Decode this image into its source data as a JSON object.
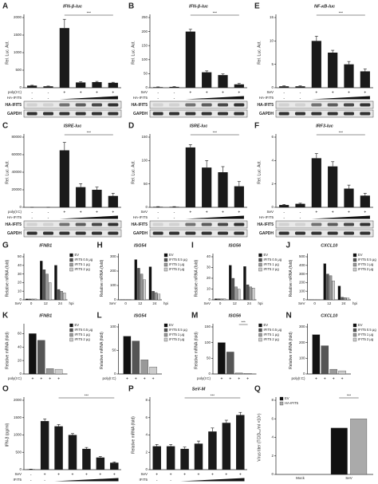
{
  "chart_data": [
    {
      "type": "bar",
      "panel": "A",
      "title": "IFN-β-luc",
      "ylabel": "Rel. Luc. Act.",
      "color": "#1a1a1a",
      "values": [
        60,
        40,
        1700,
        150,
        160,
        140
      ],
      "errors": [
        10,
        8,
        250,
        20,
        20,
        15
      ],
      "ylim": [
        0,
        2000
      ],
      "yticks": [
        0,
        500,
        1000,
        1500,
        2000
      ],
      "annotation": "***",
      "rows": [
        {
          "label": "poly(I:C)",
          "signs": [
            "-",
            "-",
            "+",
            "+",
            "+",
            "+"
          ]
        },
        {
          "label": "HA-IFIT5",
          "signs": [
            "-",
            "-",
            null,
            null,
            null,
            null
          ],
          "ramp": true
        }
      ],
      "blots": [
        "HA-IFIT5",
        "GAPDH"
      ]
    },
    {
      "type": "bar",
      "panel": "B",
      "title": "IFN-β-luc",
      "ylabel": "Rel. Luc. Act.",
      "color": "#1a1a1a",
      "values": [
        2,
        3,
        200,
        55,
        45,
        12
      ],
      "errors": [
        1,
        1,
        8,
        5,
        4,
        3
      ],
      "ylim": [
        0,
        250
      ],
      "yticks": [
        0,
        50,
        100,
        150,
        200,
        250
      ],
      "annotation": "***",
      "rows": [
        {
          "label": "SeV",
          "signs": [
            "-",
            "-",
            "+",
            "+",
            "+",
            "+"
          ]
        },
        {
          "label": "HA-IFIT5",
          "signs": [
            "-",
            "-",
            null,
            null,
            null,
            null
          ],
          "ramp": true
        }
      ],
      "blots": [
        "HA-IFIT5",
        "GAPDH"
      ]
    },
    {
      "type": "bar",
      "panel": "E",
      "title": "NF-κB-luc",
      "ylabel": "Rel. Luc. Act.",
      "color": "#1a1a1a",
      "values": [
        0.3,
        0.3,
        10,
        7.5,
        5,
        3.5
      ],
      "errors": [
        0.1,
        0.1,
        1,
        0.5,
        0.6,
        0.5
      ],
      "ylim": [
        0,
        15
      ],
      "yticks": [
        0,
        5,
        10,
        15
      ],
      "annotation": "***",
      "rows": [
        {
          "label": "SeV",
          "signs": [
            "-",
            "-",
            "+",
            "+",
            "+",
            "+"
          ]
        },
        {
          "label": "HA-IFIT5",
          "signs": [
            "-",
            "-",
            null,
            null,
            null,
            null
          ],
          "ramp": true
        }
      ],
      "blots": [
        "HA-IFIT5",
        "GAPDH"
      ]
    },
    {
      "type": "bar",
      "panel": "C",
      "title": "ISRE-luc",
      "ylabel": "Rel. Luc. Act.",
      "color": "#1a1a1a",
      "values": [
        0,
        0,
        65000,
        23000,
        20000,
        13000
      ],
      "errors": [
        0,
        0,
        9000,
        4000,
        3000,
        3000
      ],
      "ylim": [
        0,
        80000
      ],
      "yticks": [
        0,
        20000,
        40000,
        60000,
        80000
      ],
      "annotation": "***",
      "rows": [
        {
          "label": "poly(I:C)",
          "signs": [
            "-",
            "-",
            "+",
            "+",
            "+",
            "+"
          ]
        },
        {
          "label": "HA-IFIT5",
          "signs": [
            "-",
            "-",
            null,
            null,
            null,
            null
          ],
          "ramp": true
        }
      ],
      "blots": [
        "HA-IFIT5",
        "GAPDH"
      ]
    },
    {
      "type": "bar",
      "panel": "D",
      "title": "ISRE-luc",
      "ylabel": "Rel. Luc. Act.",
      "color": "#1a1a1a",
      "values": [
        1,
        1,
        128,
        85,
        75,
        45
      ],
      "errors": [
        0.5,
        0.5,
        6,
        15,
        12,
        10
      ],
      "ylim": [
        0,
        150
      ],
      "yticks": [
        0,
        50,
        100,
        150
      ],
      "annotation": "***",
      "rows": [
        {
          "label": "SeV",
          "signs": [
            "-",
            "-",
            "+",
            "+",
            "+",
            "+"
          ]
        },
        {
          "label": "HA-IFIT5",
          "signs": [
            "-",
            "-",
            null,
            null,
            null,
            null
          ],
          "ramp": true
        }
      ],
      "blots": [
        "HA-IFIT5",
        "GAPDH"
      ]
    },
    {
      "type": "bar",
      "panel": "F",
      "title": "IRF3-luc",
      "ylabel": "Rel. Luc. Act.",
      "color": "#1a1a1a",
      "values": [
        0.2,
        0.3,
        4.2,
        3.5,
        1.6,
        1.0
      ],
      "errors": [
        0.05,
        0.05,
        0.4,
        0.4,
        0.3,
        0.2
      ],
      "ylim": [
        0,
        6
      ],
      "yticks": [
        0,
        2,
        4,
        6
      ],
      "annotation": "***",
      "rows": [
        {
          "label": "SeV",
          "signs": [
            "-",
            "-",
            "+",
            "+",
            "+",
            "+"
          ]
        },
        {
          "label": "HA-IFIT5",
          "signs": [
            "-",
            "-",
            null,
            null,
            null,
            null
          ],
          "ramp": true
        }
      ],
      "blots": [
        "HA-IFIT5",
        "GAPDH"
      ]
    },
    {
      "type": "bar",
      "panel": "G",
      "title": "IFNB1",
      "ylabel": "Relative mRNA (fold)",
      "xlabel": "SeV",
      "xunit": "hpi",
      "categories": [
        "0",
        "12",
        "24"
      ],
      "legend": "upper right",
      "series": [
        {
          "name": "EV",
          "color": "#111111",
          "values": [
            1,
            45,
            40
          ]
        },
        {
          "name": "IFIT5 0.5 μg",
          "color": "#555555",
          "values": [
            1,
            35,
            12
          ]
        },
        {
          "name": "IFIT5 1 μg",
          "color": "#999999",
          "values": [
            1,
            30,
            10
          ]
        },
        {
          "name": "IFIT5 2 μg",
          "color": "#cccccc",
          "values": [
            1,
            20,
            8
          ]
        }
      ],
      "ylim": [
        0,
        50
      ],
      "yticks": [
        0,
        10,
        20,
        30,
        40,
        50
      ]
    },
    {
      "type": "bar",
      "panel": "H",
      "title": "ISG54",
      "ylabel": "Relative mRNA (fold)",
      "xlabel": "SeV",
      "xunit": "hpi",
      "categories": [
        "0",
        "12",
        "24"
      ],
      "legend": "upper right",
      "series": [
        {
          "name": "EV",
          "color": "#111111",
          "values": [
            1,
            280,
            230
          ]
        },
        {
          "name": "IFIT5 0.5 μg",
          "color": "#555555",
          "values": [
            1,
            220,
            60
          ]
        },
        {
          "name": "IFIT5 1 μg",
          "color": "#999999",
          "values": [
            1,
            180,
            50
          ]
        },
        {
          "name": "IFIT5 2 μg",
          "color": "#cccccc",
          "values": [
            1,
            140,
            40
          ]
        }
      ],
      "ylim": [
        0,
        300
      ],
      "yticks": [
        0,
        100,
        200,
        300
      ]
    },
    {
      "type": "bar",
      "panel": "I",
      "title": "ISG56",
      "ylabel": "Relative mRNA (fold)",
      "xlabel": "SeV",
      "xunit": "hpi",
      "categories": [
        "0",
        "12",
        "24"
      ],
      "legend": "upper right",
      "series": [
        {
          "name": "EV",
          "color": "#111111",
          "values": [
            1,
            32,
            31
          ]
        },
        {
          "name": "IFIT5 0.5 μg",
          "color": "#555555",
          "values": [
            1,
            20,
            14
          ]
        },
        {
          "name": "IFIT5 1 μg",
          "color": "#999999",
          "values": [
            1,
            12,
            12
          ]
        },
        {
          "name": "IFIT5 2 μg",
          "color": "#cccccc",
          "values": [
            1,
            10,
            11
          ]
        }
      ],
      "ylim": [
        0,
        40
      ],
      "yticks": [
        0,
        10,
        20,
        30,
        40
      ]
    },
    {
      "type": "bar",
      "panel": "J",
      "title": "CXCL10",
      "ylabel": "Relative mRNA (fold)",
      "xlabel": "SeV",
      "xunit": "hpi",
      "categories": [
        "0",
        "12",
        "24"
      ],
      "legend": "upper right",
      "series": [
        {
          "name": "EV",
          "color": "#111111",
          "values": [
            1,
            420,
            160
          ]
        },
        {
          "name": "IFIT5 0.5 μg",
          "color": "#555555",
          "values": [
            1,
            300,
            30
          ]
        },
        {
          "name": "IFIT5 1 μg",
          "color": "#999999",
          "values": [
            1,
            280,
            25
          ]
        },
        {
          "name": "IFIT5 2 μg",
          "color": "#cccccc",
          "values": [
            1,
            220,
            20
          ]
        }
      ],
      "ylim": [
        0,
        500
      ],
      "yticks": [
        0,
        100,
        200,
        300,
        400,
        500
      ]
    },
    {
      "type": "bar",
      "panel": "K",
      "title": "IFNB1",
      "ylabel": "Relative mRNA (fold)",
      "categories": [
        null
      ],
      "legend": "upper right",
      "series": [
        {
          "name": "EV",
          "color": "#111111",
          "values": [
            60
          ]
        },
        {
          "name": "IFIT5 0.5 μg",
          "color": "#555555",
          "values": [
            50
          ]
        },
        {
          "name": "IFIT5 1 μg",
          "color": "#999999",
          "values": [
            8
          ]
        },
        {
          "name": "IFIT5 2 μg",
          "color": "#cccccc",
          "values": [
            7
          ]
        }
      ],
      "ylim": [
        0,
        70
      ],
      "yticks": [
        0,
        20,
        40,
        60
      ],
      "rows": [
        {
          "label": "poly(I:C)",
          "signs": [
            "+",
            "+",
            "+",
            "+"
          ]
        }
      ]
    },
    {
      "type": "bar",
      "panel": "L",
      "title": "ISG54",
      "ylabel": "Relative mRNA (fold)",
      "categories": [
        null
      ],
      "legend": "upper right",
      "series": [
        {
          "name": "EV",
          "color": "#111111",
          "values": [
            80
          ]
        },
        {
          "name": "IFIT5 0.5 μg",
          "color": "#555555",
          "values": [
            70
          ]
        },
        {
          "name": "IFIT5 1 μg",
          "color": "#999999",
          "values": [
            30
          ]
        },
        {
          "name": "IFIT5 2 μg",
          "color": "#cccccc",
          "values": [
            15
          ]
        }
      ],
      "ylim": [
        0,
        100
      ],
      "yticks": [
        0,
        50,
        100
      ],
      "rows": [
        {
          "label": "poly(I:C)",
          "signs": [
            "+",
            "+",
            "+",
            "+"
          ]
        }
      ]
    },
    {
      "type": "bar",
      "panel": "M",
      "title": "ISG56",
      "ylabel": "Relative mRNA (fold)",
      "categories": [
        null
      ],
      "legend": "upper right",
      "series": [
        {
          "name": "EV",
          "color": "#111111",
          "values": [
            100
          ]
        },
        {
          "name": "IFIT5 0.5 μg",
          "color": "#555555",
          "values": [
            70
          ]
        },
        {
          "name": "IFIT5 1 μg",
          "color": "#999999",
          "values": [
            3
          ]
        },
        {
          "name": "IFIT5 2 μg",
          "color": "#cccccc",
          "values": [
            2
          ]
        }
      ],
      "ylim": [
        0,
        150
      ],
      "yticks": [
        0,
        50,
        100,
        150
      ],
      "annotation": "***",
      "rows": [
        {
          "label": "poly(I:C)",
          "signs": [
            "+",
            "+",
            "+",
            "+"
          ]
        }
      ]
    },
    {
      "type": "bar",
      "panel": "N",
      "title": "CXCL10",
      "ylabel": "Relative mRNA (fold)",
      "categories": [
        null
      ],
      "legend": "upper right",
      "series": [
        {
          "name": "EV",
          "color": "#111111",
          "values": [
            250
          ]
        },
        {
          "name": "IFIT5 0.5 μg",
          "color": "#555555",
          "values": [
            180
          ]
        },
        {
          "name": "IFIT5 1 μg",
          "color": "#999999",
          "values": [
            30
          ]
        },
        {
          "name": "IFIT5 2 μg",
          "color": "#cccccc",
          "values": [
            20
          ]
        }
      ],
      "ylim": [
        0,
        300
      ],
      "yticks": [
        0,
        100,
        200,
        300
      ],
      "rows": [
        {
          "label": "poly(I:C)",
          "signs": [
            "+",
            "+",
            "+",
            "+"
          ]
        }
      ]
    },
    {
      "type": "bar",
      "panel": "O",
      "ylabel": "IFN-β (pg/ml)",
      "color": "#1a1a1a",
      "values": [
        10,
        1400,
        1250,
        1000,
        600,
        350,
        200
      ],
      "errors": [
        5,
        60,
        50,
        40,
        40,
        30,
        20
      ],
      "ylim": [
        0,
        2000
      ],
      "yticks": [
        0,
        500,
        1000,
        1500,
        2000
      ],
      "annotation": "***",
      "rows": [
        {
          "label": "SeV",
          "signs": [
            "-",
            "+",
            "+",
            "+",
            "+",
            "+",
            "+"
          ]
        },
        {
          "label": "IFIT5",
          "signs": [
            "-",
            "-",
            null,
            null,
            null,
            null,
            null
          ],
          "ramp": true
        }
      ]
    },
    {
      "type": "bar",
      "panel": "P",
      "title": "SeV-M",
      "ylabel": "Relative mRNA (fold)",
      "color": "#1a1a1a",
      "values": [
        2.7,
        2.7,
        2.4,
        3.0,
        4.4,
        5.4,
        6.3
      ],
      "errors": [
        0.2,
        0.2,
        0.2,
        0.3,
        0.4,
        0.3,
        0.3
      ],
      "ylim": [
        0,
        8
      ],
      "yticks": [
        0,
        2,
        4,
        6,
        8
      ],
      "annotation": "***",
      "rows": [
        {
          "label": "SeV",
          "signs": [
            "+",
            "+",
            "+",
            "+",
            "+",
            "+",
            "+"
          ]
        },
        {
          "label": "IFIT5",
          "signs": [
            "-",
            "-",
            null,
            null,
            null,
            null,
            null
          ],
          "ramp": true
        }
      ]
    },
    {
      "type": "bar",
      "panel": "Q",
      "ylabel": "Virus titer (TCID₅₀/ml ×10⁵)",
      "categories": [
        "Mock",
        "SeV"
      ],
      "legend": "upper left",
      "series": [
        {
          "name": "EV",
          "color": "#111111",
          "values": [
            0,
            5
          ]
        },
        {
          "name": "HA-IFIT5",
          "color": "#aaaaaa",
          "values": [
            0,
            6
          ]
        }
      ],
      "ylim": [
        0,
        8
      ],
      "yticks": [
        0,
        2,
        4,
        6,
        8
      ],
      "annotation": "***"
    }
  ]
}
